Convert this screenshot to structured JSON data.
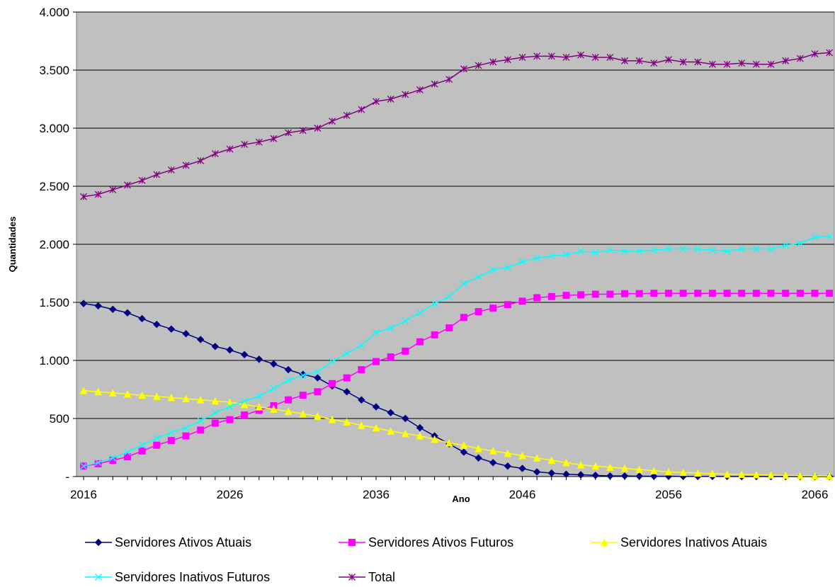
{
  "chart_data": {
    "type": "line",
    "xlabel": "Ano",
    "ylabel": "Quantidades",
    "xlim": [
      2016,
      2067
    ],
    "ylim": [
      0,
      4000
    ],
    "x_ticks": [
      2016,
      2026,
      2036,
      2046,
      2056,
      2066
    ],
    "x_tick_labels": [
      "2016",
      "2026",
      "2036",
      "2046",
      "2056",
      "2066"
    ],
    "y_ticks": [
      0,
      500,
      1000,
      1500,
      2000,
      2500,
      3000,
      3500,
      4000
    ],
    "y_tick_labels": [
      "-",
      "500",
      "1.000",
      "1.500",
      "2.000",
      "2.500",
      "3.000",
      "3.500",
      "4.000"
    ],
    "grid": "horizontal",
    "background": "#c0c0c0",
    "legend_position": "bottom",
    "x": [
      2016,
      2017,
      2018,
      2019,
      2020,
      2021,
      2022,
      2023,
      2024,
      2025,
      2026,
      2027,
      2028,
      2029,
      2030,
      2031,
      2032,
      2033,
      2034,
      2035,
      2036,
      2037,
      2038,
      2039,
      2040,
      2041,
      2042,
      2043,
      2044,
      2045,
      2046,
      2047,
      2048,
      2049,
      2050,
      2051,
      2052,
      2053,
      2054,
      2055,
      2056,
      2057,
      2058,
      2059,
      2060,
      2061,
      2062,
      2063,
      2064,
      2065,
      2066,
      2067
    ],
    "series": [
      {
        "name": "Servidores Ativos Atuais",
        "color": "#000080",
        "marker": "diamond",
        "values": [
          1490,
          1470,
          1440,
          1410,
          1360,
          1310,
          1270,
          1230,
          1180,
          1120,
          1090,
          1050,
          1010,
          970,
          920,
          880,
          850,
          780,
          730,
          660,
          600,
          550,
          500,
          420,
          350,
          280,
          210,
          160,
          120,
          90,
          70,
          40,
          30,
          20,
          15,
          10,
          5,
          5,
          3,
          2,
          2,
          1,
          1,
          1,
          1,
          0,
          0,
          0,
          0,
          0,
          0,
          0
        ]
      },
      {
        "name": "Servidores Ativos Futuros",
        "color": "#ff00ff",
        "marker": "square",
        "values": [
          90,
          110,
          140,
          170,
          220,
          270,
          310,
          350,
          400,
          460,
          490,
          530,
          570,
          610,
          660,
          700,
          730,
          800,
          850,
          920,
          990,
          1030,
          1080,
          1160,
          1220,
          1280,
          1370,
          1420,
          1450,
          1480,
          1510,
          1540,
          1550,
          1560,
          1565,
          1570,
          1570,
          1575,
          1575,
          1578,
          1578,
          1578,
          1578,
          1578,
          1578,
          1578,
          1578,
          1578,
          1578,
          1578,
          1578,
          1578
        ]
      },
      {
        "name": "Servidores Inativos Atuais",
        "color": "#ffff00",
        "marker": "triangle",
        "values": [
          740,
          730,
          720,
          710,
          700,
          690,
          680,
          670,
          660,
          650,
          640,
          620,
          600,
          580,
          560,
          540,
          520,
          490,
          470,
          440,
          420,
          390,
          370,
          350,
          320,
          290,
          270,
          240,
          220,
          200,
          180,
          160,
          140,
          120,
          100,
          90,
          80,
          70,
          60,
          50,
          40,
          35,
          30,
          25,
          20,
          18,
          15,
          12,
          10,
          8,
          6,
          5
        ]
      },
      {
        "name": "Servidores Inativos Futuros",
        "color": "#00ffff",
        "marker": "x",
        "values": [
          90,
          120,
          160,
          210,
          270,
          330,
          380,
          420,
          480,
          550,
          600,
          650,
          690,
          760,
          830,
          870,
          900,
          990,
          1060,
          1130,
          1240,
          1280,
          1340,
          1410,
          1490,
          1550,
          1660,
          1720,
          1780,
          1800,
          1850,
          1880,
          1900,
          1910,
          1940,
          1930,
          1950,
          1940,
          1940,
          1950,
          1960,
          1960,
          1960,
          1950,
          1940,
          1960,
          1960,
          1960,
          1990,
          2010,
          2060,
          2070
        ]
      },
      {
        "name": "Total",
        "color": "#800080",
        "marker": "asterisk",
        "values": [
          2410,
          2430,
          2470,
          2510,
          2550,
          2600,
          2640,
          2680,
          2720,
          2780,
          2820,
          2860,
          2880,
          2910,
          2960,
          2980,
          3000,
          3060,
          3110,
          3160,
          3230,
          3250,
          3290,
          3330,
          3380,
          3420,
          3510,
          3540,
          3570,
          3590,
          3610,
          3620,
          3620,
          3610,
          3630,
          3610,
          3610,
          3580,
          3580,
          3560,
          3590,
          3570,
          3570,
          3550,
          3550,
          3560,
          3550,
          3550,
          3580,
          3600,
          3640,
          3650
        ]
      }
    ]
  }
}
